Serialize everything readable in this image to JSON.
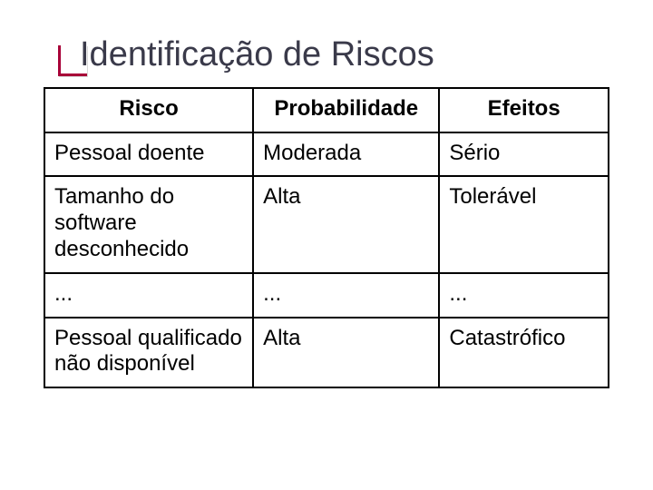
{
  "title": "Identificação de Riscos",
  "table": {
    "columns": [
      "Risco",
      "Probabilidade",
      "Efeitos"
    ],
    "rows": [
      {
        "risco": "Pessoal doente",
        "prob": "Moderada",
        "efeito": "Sério",
        "tall": false,
        "center": false
      },
      {
        "risco": "Tamanho do software desconhecido",
        "prob": "Alta",
        "efeito": "Tolerável",
        "tall": true,
        "center": false
      },
      {
        "risco": "...",
        "prob": "...",
        "efeito": "...",
        "tall": false,
        "center": true
      },
      {
        "risco": "Pessoal qualificado não disponível",
        "prob": "Alta",
        "efeito": "Catastrófico",
        "tall": false,
        "center": false
      }
    ],
    "border_color": "#000000",
    "text_color": "#000000",
    "header_fontsize": 24,
    "cell_fontsize": 24,
    "col_widths_pct": [
      37,
      33,
      30
    ]
  },
  "colors": {
    "background": "#ffffff",
    "title_color": "#3a3a4a",
    "accent_color": "#a80038"
  },
  "typography": {
    "title_fontsize": 38,
    "font_family": "Verdana"
  }
}
